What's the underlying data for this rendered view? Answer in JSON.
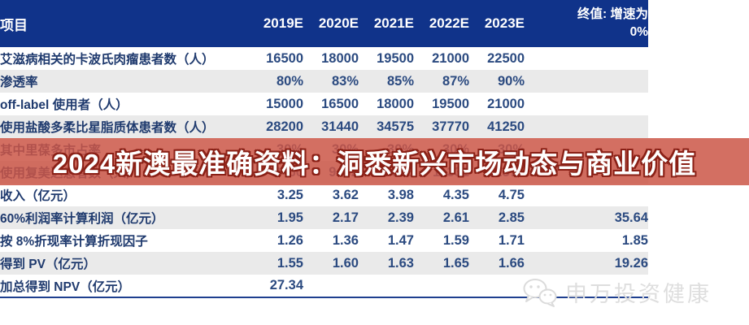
{
  "page": {
    "background": "#ffffff"
  },
  "table": {
    "header_bg": "#10338a",
    "bottom_border_color": "#1e3f8f",
    "alt_row_color": "#eaeaea",
    "text_color": "#2b4a80",
    "project_label": "项目",
    "year_headers": [
      "2019E",
      "2020E",
      "2021E",
      "2022E",
      "2023E"
    ],
    "terminal_header": {
      "line1": "终值: 增速为",
      "line2": "0%"
    },
    "rows": [
      {
        "label": "艾滋病相关的卡波氏肉瘤患者数（人）",
        "values": [
          "16500",
          "18000",
          "19500",
          "21000",
          "22500",
          ""
        ]
      },
      {
        "label": "渗透率",
        "values": [
          "80%",
          "83%",
          "85%",
          "87%",
          "90%",
          ""
        ]
      },
      {
        "label": "off-label 使用者（人）",
        "values": [
          "15000",
          "16500",
          "18000",
          "19500",
          "21000",
          ""
        ]
      },
      {
        "label": "使用盐酸多柔比星脂质体患者数（人）",
        "values": [
          "28200",
          "31440",
          "34575",
          "37770",
          "41250",
          ""
        ]
      },
      {
        "label": "其中里葆多市占率",
        "values": [
          "30%",
          "30%",
          "30%",
          "30%",
          "30%",
          ""
        ]
      },
      {
        "label": "使用复美达患者数（人）",
        "values": [
          "8460",
          "9432",
          "10373",
          "11331",
          "12375",
          ""
        ]
      },
      {
        "label": "收入（亿元）",
        "values": [
          "3.25",
          "3.62",
          "3.98",
          "4.35",
          "4.75",
          ""
        ]
      },
      {
        "label": "60%利润率计算利润（亿元）",
        "values": [
          "1.95",
          "2.17",
          "2.39",
          "2.61",
          "2.85",
          "35.64"
        ]
      },
      {
        "label": "按 8%折现率计算折现因子",
        "values": [
          "1.26",
          "1.36",
          "1.47",
          "1.59",
          "1.71",
          "1.85"
        ]
      },
      {
        "label": "得到 PV（亿元）",
        "values": [
          "1.55",
          "1.60",
          "1.63",
          "1.65",
          "1.66",
          "19.26"
        ]
      },
      {
        "label": "加总得到 NPV（亿元）",
        "values": [
          "27.34",
          "",
          "",
          "",
          "",
          ""
        ]
      }
    ]
  },
  "overlay": {
    "text": "2024新澳最准确资料：洞悉新兴市场动态与商业价值",
    "band_color": "rgba(203,86,70,0.85)",
    "text_color": "#ffffff",
    "outline_color": "#8a2016"
  },
  "watermark": {
    "text": "申万投资健康",
    "color": "#dedede",
    "icon": "wechat-icon"
  }
}
